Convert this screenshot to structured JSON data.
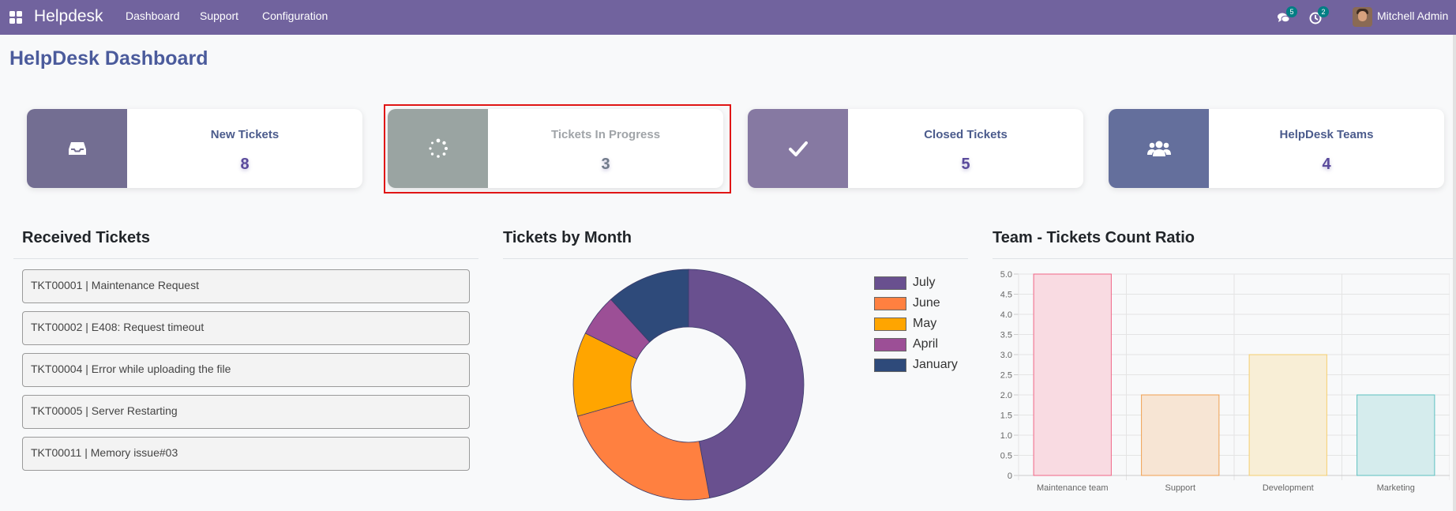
{
  "navbar": {
    "brand": "Helpdesk",
    "menu": [
      "Dashboard",
      "Support",
      "Configuration"
    ],
    "messages_badge": "5",
    "activities_badge": "2",
    "user": "Mitchell Admin",
    "color": "#71639e"
  },
  "page": {
    "title": "HelpDesk Dashboard"
  },
  "cards": [
    {
      "label": "New Tickets",
      "value": "8",
      "icon": "inbox-icon",
      "color": "#736e92"
    },
    {
      "label": "Tickets In Progress",
      "value": "3",
      "icon": "spinner-icon",
      "color": "#9aa4a2"
    },
    {
      "label": "Closed Tickets",
      "value": "5",
      "icon": "check-icon",
      "color": "#8679a2"
    },
    {
      "label": "HelpDesk Teams",
      "value": "4",
      "icon": "users-icon",
      "color": "#646f9c"
    }
  ],
  "received": {
    "title": "Received Tickets",
    "tickets": [
      "TKT00001 | Maintenance Request",
      "TKT00002 | E408: Request timeout",
      "TKT00004 | Error while uploading the file",
      "TKT00005 | Server Restarting",
      "TKT00011 | Memory issue#03"
    ]
  },
  "chart_data": [
    {
      "type": "pie",
      "title": "Tickets by Month",
      "legend_position": "right",
      "categories": [
        "July",
        "June",
        "May",
        "April",
        "January"
      ],
      "values": [
        4,
        2,
        1,
        0.5,
        1
      ],
      "colors": [
        "#69508f",
        "#ff8040",
        "#ffa500",
        "#9c4f96",
        "#2e4a7a"
      ]
    },
    {
      "type": "bar",
      "title": "Team - Tickets Count Ratio",
      "categories": [
        "Maintenance team",
        "Support",
        "Development",
        "Marketing"
      ],
      "values": [
        5,
        2,
        3,
        2
      ],
      "ylim": [
        0,
        5
      ],
      "yticks": [
        "0",
        "0.5",
        "1.0",
        "1.5",
        "2.0",
        "2.5",
        "3.0",
        "3.5",
        "4.0",
        "4.5",
        "5.0"
      ],
      "grid": true,
      "fill_colors": [
        "#f9dbe2",
        "#f7e5d4",
        "#f8eed6",
        "#d5eced"
      ],
      "border_colors": [
        "#f06585",
        "#f0a050",
        "#f5cf70",
        "#5cc0c0"
      ]
    }
  ]
}
